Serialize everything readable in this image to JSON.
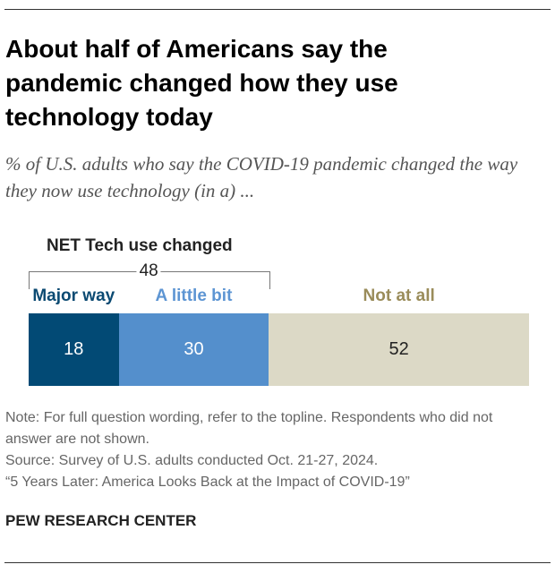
{
  "title": "About half of Americans say the pandemic changed how they use technology today",
  "subtitle": "% of U.S. adults who say the COVID-19 pandemic changed the way they now use technology (in a) ...",
  "chart_data": {
    "type": "bar",
    "orientation": "horizontal-stacked",
    "categories": [
      "Major way",
      "A little bit",
      "Not at all"
    ],
    "values": [
      18,
      30,
      52
    ],
    "colors": [
      "#024a75",
      "#548fcc",
      "#dcd9c6"
    ],
    "label_colors": [
      "#0b4a72",
      "#5d95d3",
      "#9a8c5a"
    ],
    "value_text_colors": [
      "#ffffff",
      "#ffffff",
      "#222222"
    ],
    "net": {
      "label": "NET Tech use changed",
      "value": 48
    }
  },
  "notes": [
    "Note: For full question wording, refer to the topline. Respondents who did not answer are not shown.",
    "Source: Survey of U.S. adults conducted Oct. 21-27, 2024.",
    "“5 Years Later: America Looks Back at the Impact of COVID-19”"
  ],
  "logo": "PEW RESEARCH CENTER"
}
